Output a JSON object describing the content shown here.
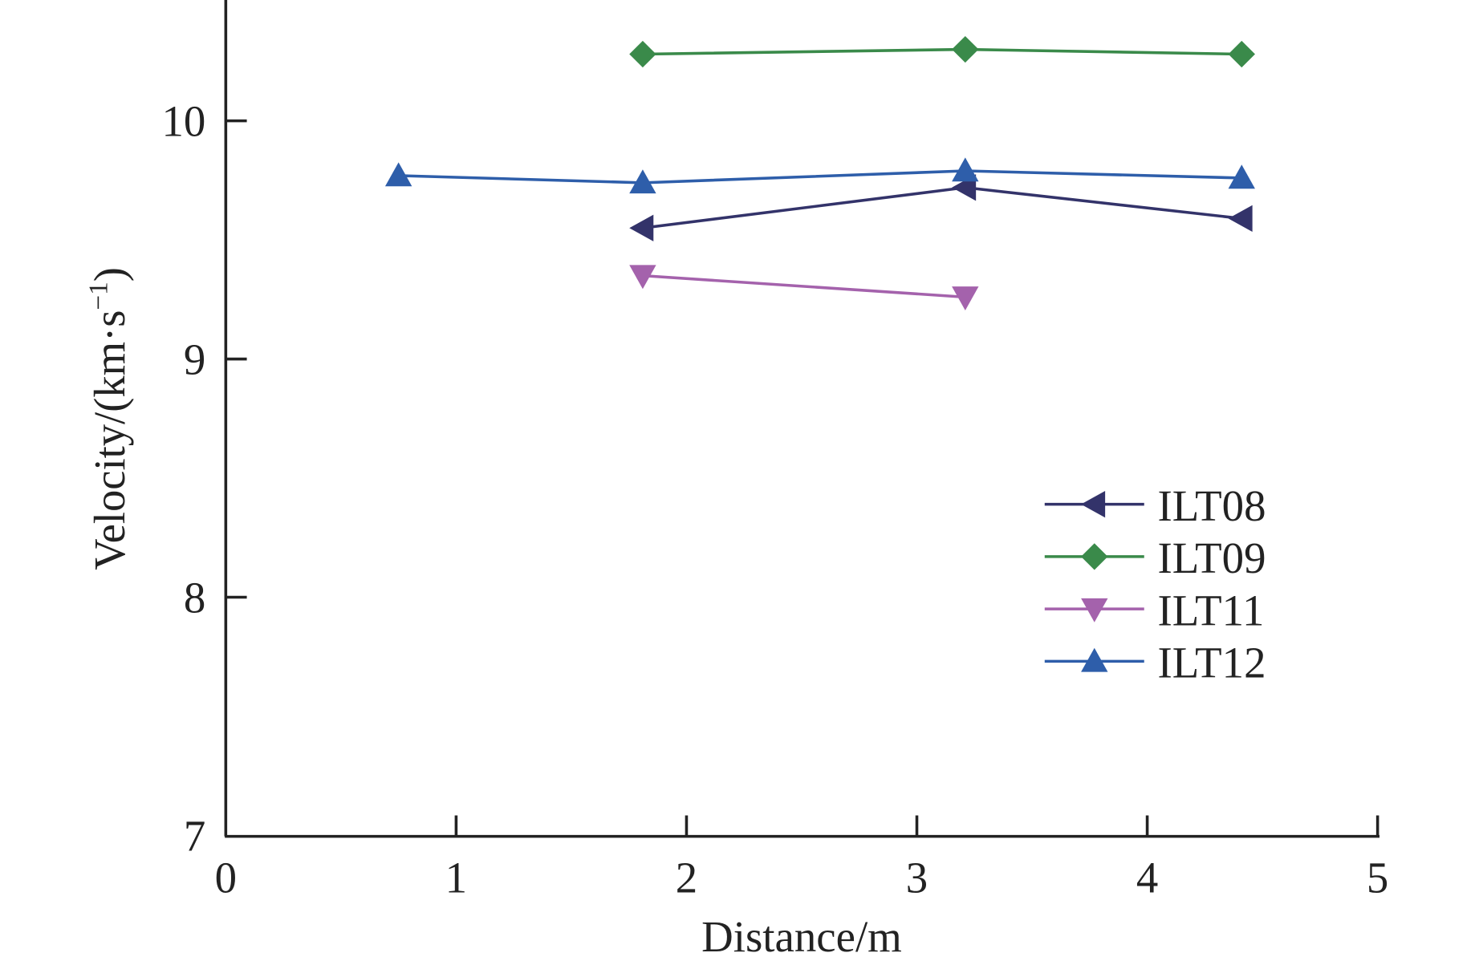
{
  "chart_data": {
    "type": "line",
    "title": "",
    "xlabel": "Distance/m",
    "ylabel": "Velocity/(km·s",
    "ylabel_sup": "−1",
    "ylabel_end": ")",
    "xlim": [
      0,
      5
    ],
    "ylim": [
      7,
      10.5
    ],
    "xticks": [
      "0",
      "1",
      "2",
      "3",
      "4",
      "5"
    ],
    "yticks": [
      "7",
      "8",
      "9",
      "10"
    ],
    "grid": false,
    "legend_position": "right-middle",
    "series": [
      {
        "name": "ILT08",
        "color": "#33336a",
        "marker": "triangle-left",
        "x": [
          1.81,
          3.21,
          4.41
        ],
        "y": [
          9.55,
          9.72,
          9.59
        ]
      },
      {
        "name": "ILT09",
        "color": "#3a8a4a",
        "marker": "diamond",
        "x": [
          1.81,
          3.21,
          4.41
        ],
        "y": [
          10.28,
          10.3,
          10.28
        ]
      },
      {
        "name": "ILT11",
        "color": "#a462ac",
        "marker": "triangle-down",
        "x": [
          1.81,
          3.21
        ],
        "y": [
          9.35,
          9.26
        ]
      },
      {
        "name": "ILT12",
        "color": "#2e5eaa",
        "marker": "triangle-up",
        "x": [
          0.75,
          1.81,
          3.21,
          4.41
        ],
        "y": [
          9.77,
          9.74,
          9.79,
          9.76
        ]
      }
    ]
  }
}
